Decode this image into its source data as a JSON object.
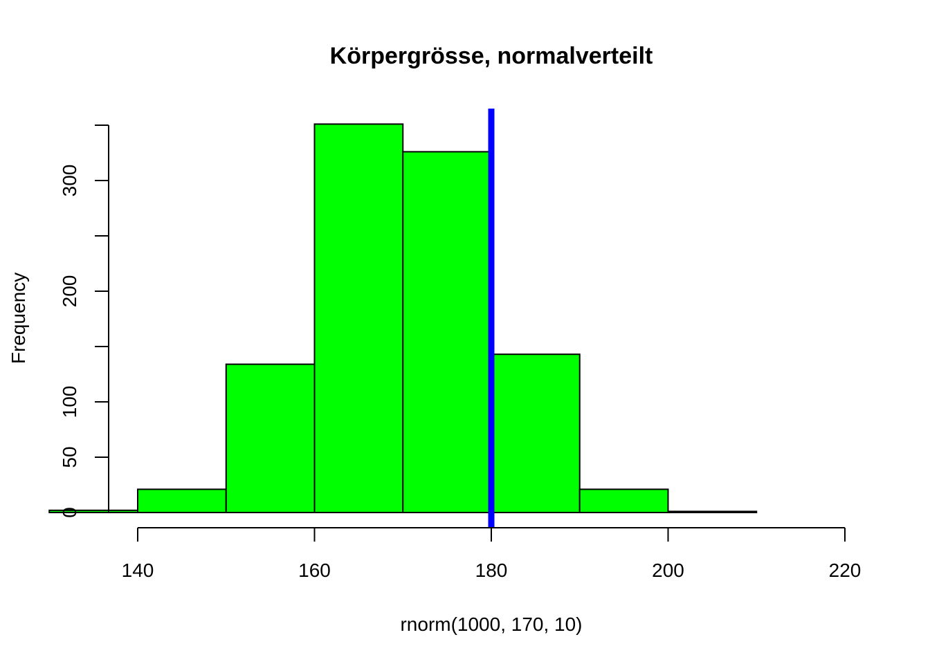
{
  "chart_data": {
    "type": "bar",
    "subtype": "histogram",
    "title": "Körpergrösse, normalverteilt",
    "xlabel": "rnorm(1000, 170, 10)",
    "ylabel": "Frequency",
    "bins": [
      {
        "from": 130,
        "to": 140,
        "count": 2
      },
      {
        "from": 140,
        "to": 150,
        "count": 21
      },
      {
        "from": 150,
        "to": 160,
        "count": 134
      },
      {
        "from": 160,
        "to": 170,
        "count": 351
      },
      {
        "from": 170,
        "to": 180,
        "count": 326
      },
      {
        "from": 180,
        "to": 190,
        "count": 143
      },
      {
        "from": 190,
        "to": 200,
        "count": 21
      },
      {
        "from": 200,
        "to": 210,
        "count": 1
      }
    ],
    "xlim": [
      140,
      220
    ],
    "ylim": [
      0,
      350
    ],
    "x_ticks": [
      140,
      160,
      180,
      200,
      220
    ],
    "y_ticks": [
      0,
      50,
      100,
      150,
      200,
      250,
      300,
      350
    ],
    "y_tick_labels": [
      "0",
      "50",
      "100",
      "",
      "200",
      "",
      "300",
      ""
    ],
    "vline": {
      "x": 180
    },
    "grid": false,
    "colors": {
      "bar_fill": "#00ff00",
      "bar_border": "#000000",
      "vline": "#0000ff"
    }
  }
}
